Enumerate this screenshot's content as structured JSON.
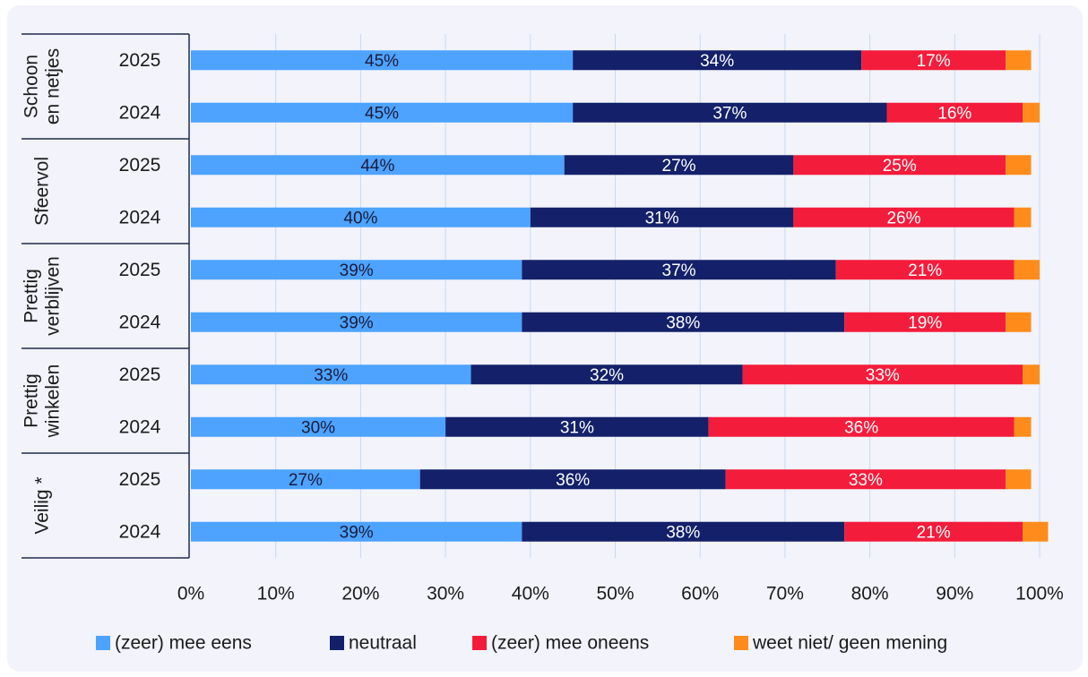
{
  "chart_data": {
    "type": "bar",
    "orientation": "horizontal",
    "stacked": true,
    "xlim": [
      0,
      100
    ],
    "xticks": [
      "0%",
      "10%",
      "20%",
      "30%",
      "40%",
      "50%",
      "60%",
      "70%",
      "80%",
      "90%",
      "100%"
    ],
    "grid": "vertical",
    "legend_position": "bottom",
    "groups": [
      {
        "label_lines": [
          "Schoon",
          "en netjes"
        ],
        "rows": [
          {
            "year": "2025",
            "values": [
              45,
              34,
              17,
              3
            ]
          },
          {
            "year": "2024",
            "values": [
              45,
              37,
              16,
              2
            ]
          }
        ]
      },
      {
        "label_lines": [
          "Sfeervol"
        ],
        "rows": [
          {
            "year": "2025",
            "values": [
              44,
              27,
              25,
              3
            ]
          },
          {
            "year": "2024",
            "values": [
              40,
              31,
              26,
              2
            ]
          }
        ]
      },
      {
        "label_lines": [
          "Prettig",
          "verblijven"
        ],
        "rows": [
          {
            "year": "2025",
            "values": [
              39,
              37,
              21,
              3
            ]
          },
          {
            "year": "2024",
            "values": [
              39,
              38,
              19,
              3
            ]
          }
        ]
      },
      {
        "label_lines": [
          "Prettig",
          "winkelen"
        ],
        "rows": [
          {
            "year": "2025",
            "values": [
              33,
              32,
              33,
              2
            ]
          },
          {
            "year": "2024",
            "values": [
              30,
              31,
              36,
              2
            ]
          }
        ]
      },
      {
        "label_lines": [
          "Veilig *"
        ],
        "rows": [
          {
            "year": "2025",
            "values": [
              27,
              36,
              33,
              3
            ]
          },
          {
            "year": "2024",
            "values": [
              39,
              38,
              21,
              3
            ]
          }
        ]
      }
    ],
    "series": [
      {
        "name": "(zeer) mee eens",
        "color": "#4da3ff",
        "label_color": "#1b1b3a",
        "show_labels": true
      },
      {
        "name": "neutraal",
        "color": "#14216a",
        "label_color": "#ffffff",
        "show_labels": true
      },
      {
        "name": "(zeer) mee oneens",
        "color": "#f41c3b",
        "label_color": "#ffffff",
        "show_labels": true
      },
      {
        "name": "weet niet/ geen mening",
        "color": "#ff8c1a",
        "label_color": "#1b1b1b",
        "show_labels": false
      }
    ]
  }
}
